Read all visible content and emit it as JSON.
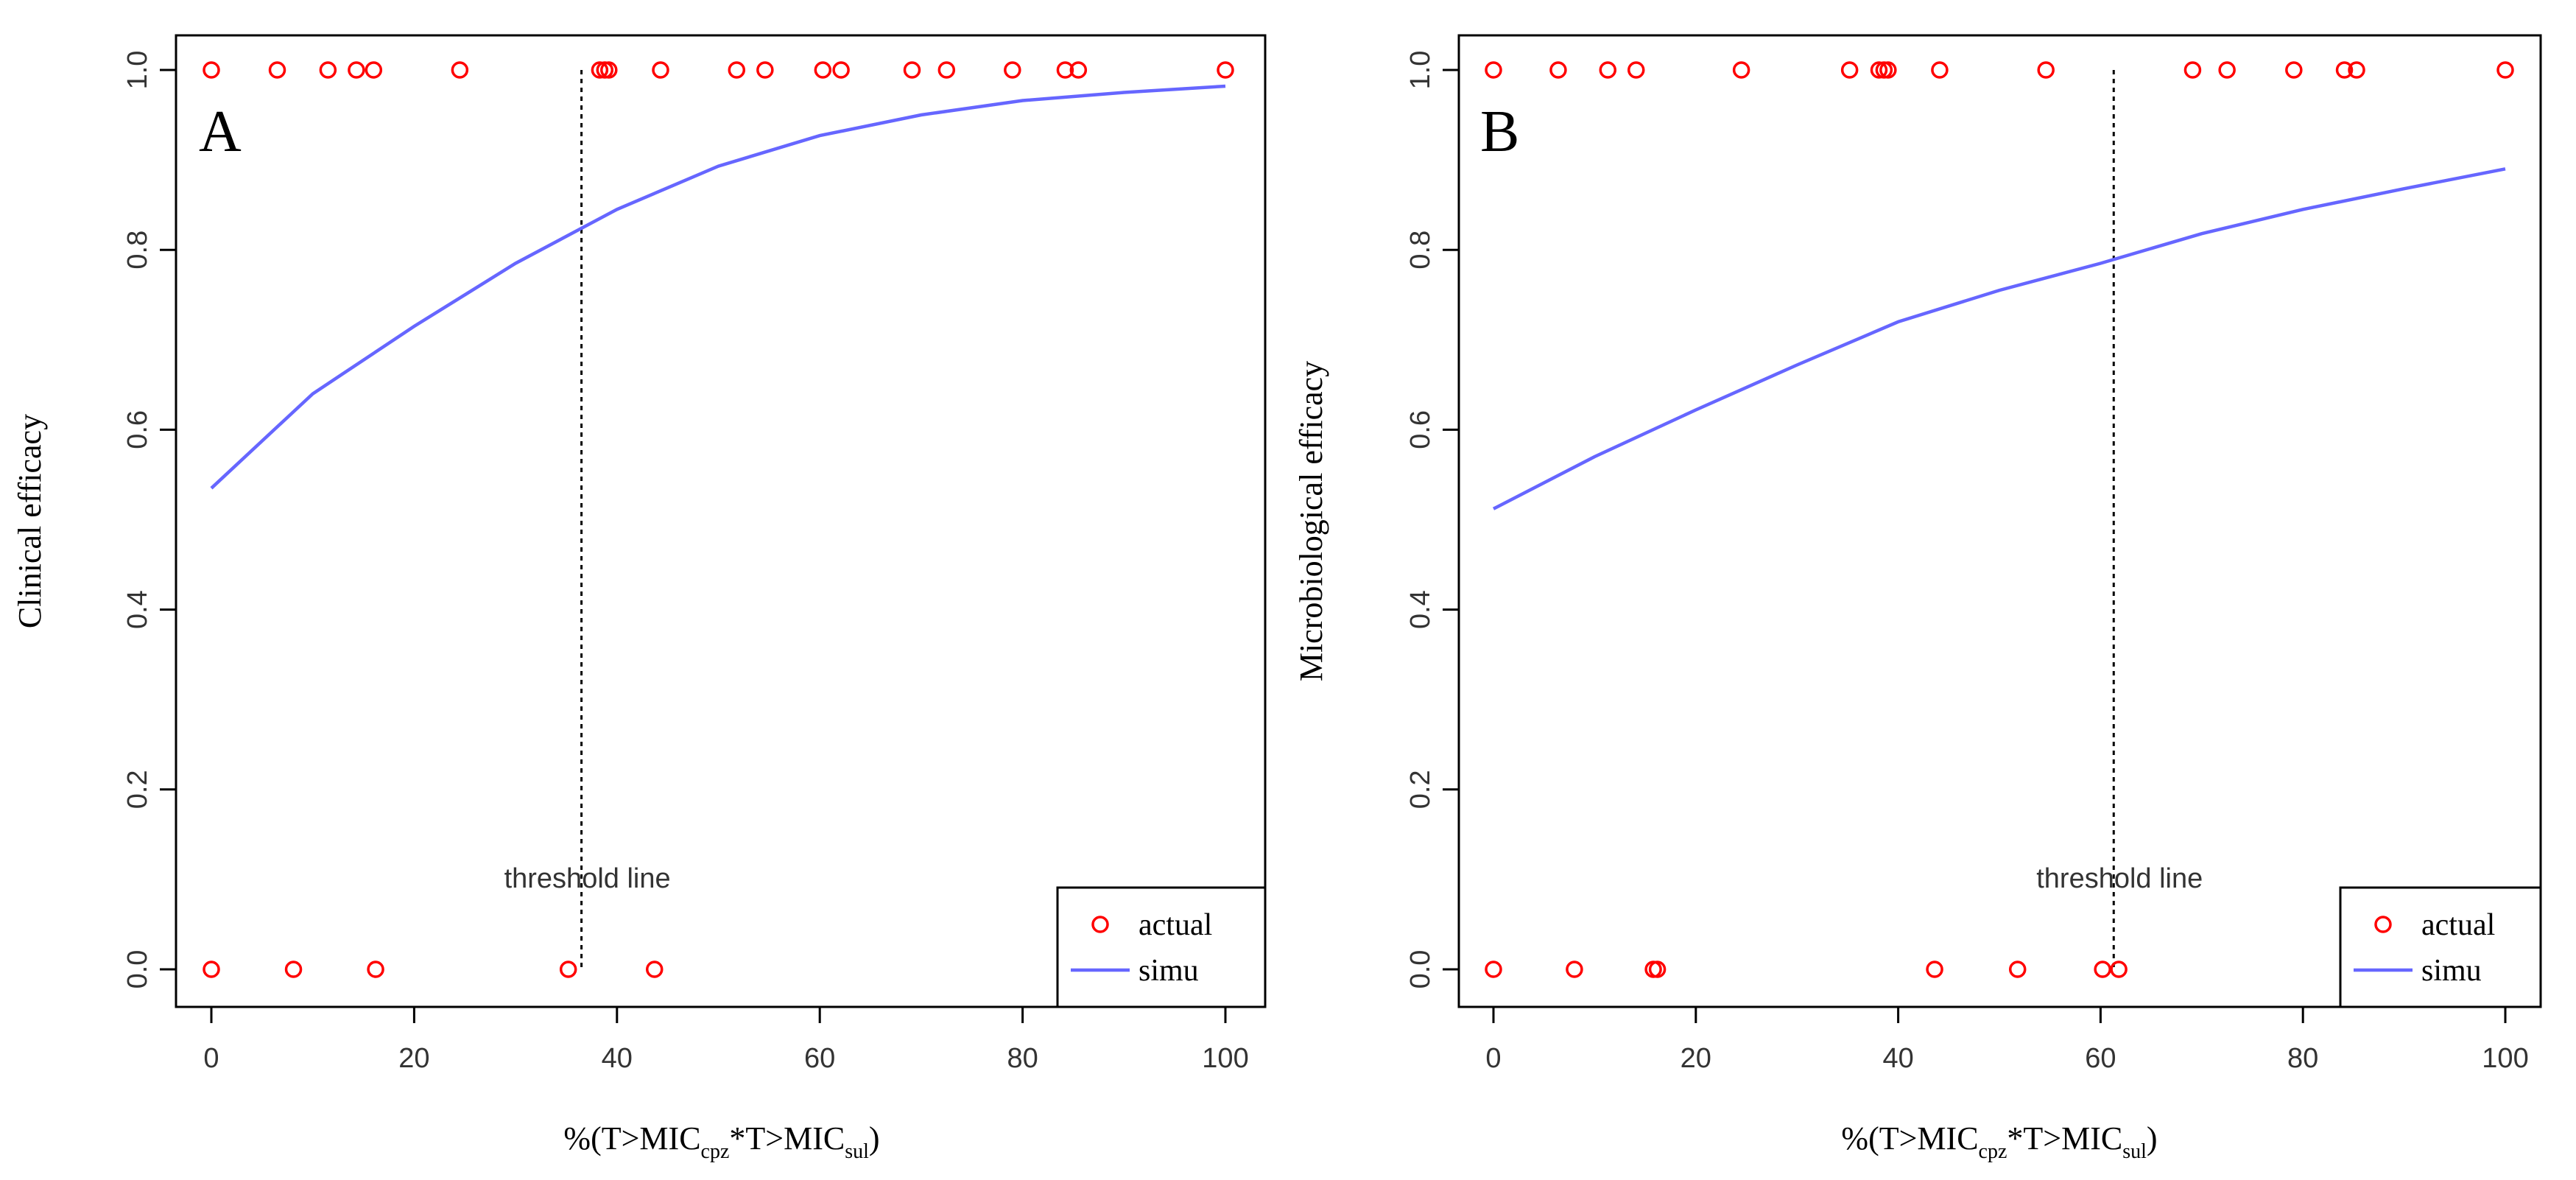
{
  "chart_data": [
    {
      "type": "scatter+line",
      "panel_label": "A",
      "xlabel": {
        "prefix": "%(T>MIC",
        "sub1": "cpz",
        "mid": "*T>MIC",
        "sub2": "sul",
        "suffix": ")"
      },
      "ylabel": "Clinical efficacy",
      "xlim": [
        0,
        100
      ],
      "ylim": [
        0,
        1
      ],
      "xticks": [
        0,
        20,
        40,
        60,
        80,
        100
      ],
      "yticks": [
        0.0,
        0.2,
        0.4,
        0.6,
        0.8,
        1.0
      ],
      "xtick_labels": [
        "0",
        "20",
        "40",
        "60",
        "80",
        "100"
      ],
      "ytick_labels": [
        "0.0",
        "0.2",
        "0.4",
        "0.6",
        "0.8",
        "1.0"
      ],
      "threshold": {
        "x": 36.5,
        "label": "threshold line"
      },
      "legend": {
        "position": "bottom-right",
        "entries": [
          "actual",
          "simu"
        ]
      },
      "series": [
        {
          "name": "actual",
          "kind": "points",
          "color": "#ff0000",
          "points": [
            [
              0,
              1
            ],
            [
              6.5,
              1
            ],
            [
              11.5,
              1
            ],
            [
              14.3,
              1
            ],
            [
              16,
              1
            ],
            [
              24.5,
              1
            ],
            [
              38.3,
              1
            ],
            [
              38.8,
              1
            ],
            [
              39.2,
              1
            ],
            [
              44.3,
              1
            ],
            [
              51.8,
              1
            ],
            [
              54.6,
              1
            ],
            [
              60.3,
              1
            ],
            [
              62.1,
              1
            ],
            [
              69.1,
              1
            ],
            [
              72.5,
              1
            ],
            [
              79,
              1
            ],
            [
              84.2,
              1
            ],
            [
              85.5,
              1
            ],
            [
              100,
              1
            ],
            [
              0,
              0
            ],
            [
              8.1,
              0
            ],
            [
              16.2,
              0
            ],
            [
              35.2,
              0
            ],
            [
              43.7,
              0
            ]
          ]
        },
        {
          "name": "simu",
          "kind": "line",
          "color": "#6666ff",
          "points": [
            [
              0,
              0.535
            ],
            [
              10,
              0.64
            ],
            [
              20,
              0.715
            ],
            [
              30,
              0.785
            ],
            [
              40,
              0.845
            ],
            [
              50,
              0.893
            ],
            [
              60,
              0.927
            ],
            [
              70,
              0.95
            ],
            [
              80,
              0.966
            ],
            [
              90,
              0.975
            ],
            [
              100,
              0.982
            ]
          ]
        }
      ]
    },
    {
      "type": "scatter+line",
      "panel_label": "B",
      "xlabel": {
        "prefix": "%(T>MIC",
        "sub1": "cpz",
        "mid": "*T>MIC",
        "sub2": "sul",
        "suffix": ")"
      },
      "ylabel": "Microbiological efficacy",
      "xlim": [
        0,
        100
      ],
      "ylim": [
        0,
        1
      ],
      "xticks": [
        0,
        20,
        40,
        60,
        80,
        100
      ],
      "yticks": [
        0.0,
        0.2,
        0.4,
        0.6,
        0.8,
        1.0
      ],
      "xtick_labels": [
        "0",
        "20",
        "40",
        "60",
        "80",
        "100"
      ],
      "ytick_labels": [
        "0.0",
        "0.2",
        "0.4",
        "0.6",
        "0.8",
        "1.0"
      ],
      "threshold": {
        "x": 61.3,
        "label": "threshold line"
      },
      "legend": {
        "position": "bottom-right",
        "entries": [
          "actual",
          "simu"
        ]
      },
      "series": [
        {
          "name": "actual",
          "kind": "points",
          "color": "#ff0000",
          "points": [
            [
              0,
              1
            ],
            [
              6.4,
              1
            ],
            [
              11.3,
              1
            ],
            [
              14.1,
              1
            ],
            [
              24.5,
              1
            ],
            [
              35.2,
              1
            ],
            [
              38.1,
              1
            ],
            [
              38.6,
              1
            ],
            [
              39,
              1
            ],
            [
              44.1,
              1
            ],
            [
              54.6,
              1
            ],
            [
              69.1,
              1
            ],
            [
              72.5,
              1
            ],
            [
              79.1,
              1
            ],
            [
              84.1,
              1
            ],
            [
              85.3,
              1
            ],
            [
              100,
              1
            ],
            [
              0,
              0
            ],
            [
              8,
              0
            ],
            [
              15.8,
              0
            ],
            [
              16.2,
              0
            ],
            [
              43.6,
              0
            ],
            [
              51.8,
              0
            ],
            [
              60.2,
              0
            ],
            [
              61.8,
              0
            ]
          ]
        },
        {
          "name": "simu",
          "kind": "line",
          "color": "#6666ff",
          "points": [
            [
              0,
              0.512
            ],
            [
              10,
              0.57
            ],
            [
              20,
              0.622
            ],
            [
              30,
              0.672
            ],
            [
              40,
              0.72
            ],
            [
              50,
              0.755
            ],
            [
              60,
              0.785
            ],
            [
              70,
              0.818
            ],
            [
              80,
              0.845
            ],
            [
              90,
              0.868
            ],
            [
              100,
              0.89
            ]
          ]
        }
      ]
    }
  ]
}
